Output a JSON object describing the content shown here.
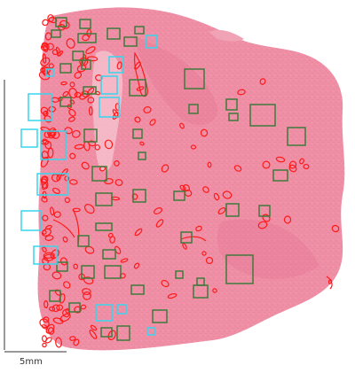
{
  "scale_bar": {
    "label": "5mm"
  },
  "colors": {
    "tissue": "#ee8fa6",
    "tissue_light": "#f4b3c3",
    "tissue_dark": "#e0607f",
    "outline_red": "#ff1a1a",
    "box_green": "#3f7a3a",
    "box_cyan": "#37d6ee",
    "scale_line": "#333333"
  }
}
